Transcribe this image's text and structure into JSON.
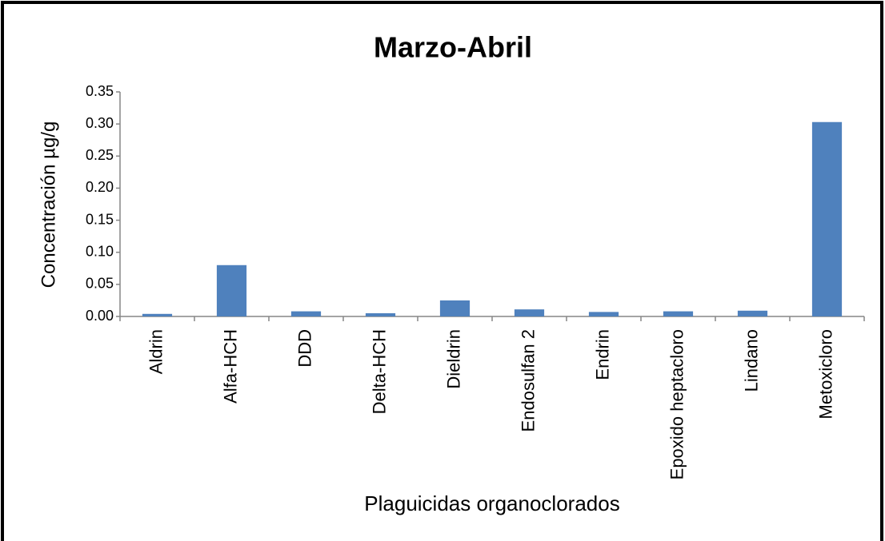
{
  "chart_data": {
    "type": "bar",
    "title": "Marzo-Abril",
    "x_label": "Plaguicidas organoclorados",
    "y_label": "Concentración µg/g",
    "categories": [
      "Aldrin",
      "Alfa-HCH",
      "DDD",
      "Delta-HCH",
      "Dieldrin",
      "Endosulfan 2",
      "Endrin",
      "Epoxido heptacloro",
      "Lindano",
      "Metoxicloro"
    ],
    "values": [
      0.004,
      0.08,
      0.008,
      0.005,
      0.025,
      0.011,
      0.007,
      0.008,
      0.009,
      0.303
    ],
    "color": "#4f81bd",
    "ylim": [
      0,
      0.35
    ],
    "yticks": [
      {
        "value": 0,
        "label": "0.00"
      },
      0.05,
      {
        "value": 0.1,
        "label": "0.10"
      },
      0.15,
      {
        "value": 0.2,
        "label": "0.20"
      },
      0.25,
      {
        "value": 0.3,
        "label": "0.30"
      },
      0.35
    ],
    "grid": false
  }
}
